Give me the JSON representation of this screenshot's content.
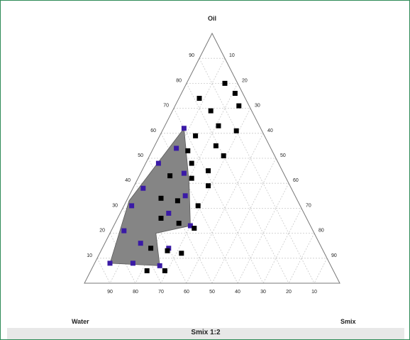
{
  "chart_data": {
    "type": "scatter",
    "subtype": "ternary",
    "caption": "Smix 1:2",
    "vertices": {
      "top": "Oil",
      "left": "Water",
      "right": "Smix"
    },
    "grid": true,
    "grid_style": "dashed",
    "tick_labels": {
      "left_side": [
        "90",
        "80",
        "70",
        "60",
        "50",
        "40",
        "30",
        "20",
        "10"
      ],
      "right_side": [
        "10",
        "20",
        "30",
        "40",
        "50",
        "60",
        "70",
        "80",
        "90"
      ],
      "bottom_side": [
        "90",
        "80",
        "70",
        "60",
        "50",
        "40",
        "30",
        "20",
        "10"
      ]
    },
    "region": {
      "name": "shaded region",
      "color": "#858585",
      "points": [
        {
          "water": 30,
          "oil": 62,
          "smix": 8
        },
        {
          "water": 39,
          "oil": 40,
          "smix": 21
        },
        {
          "water": 47,
          "oil": 23,
          "smix": 30
        },
        {
          "water": 62,
          "oil": 20,
          "smix": 18
        },
        {
          "water": 67,
          "oil": 7,
          "smix": 26
        },
        {
          "water": 86,
          "oil": 8,
          "smix": 6
        },
        {
          "water": 66,
          "oil": 33,
          "smix": 1
        }
      ]
    },
    "series": [
      {
        "color": "#3a1aa6",
        "points": [
          {
            "water": 30,
            "oil": 62,
            "smix": 8
          },
          {
            "water": 37,
            "oil": 54,
            "smix": 9
          },
          {
            "water": 47,
            "oil": 48,
            "smix": 5
          },
          {
            "water": 39,
            "oil": 44,
            "smix": 17
          },
          {
            "water": 58,
            "oil": 38,
            "smix": 4
          },
          {
            "water": 43,
            "oil": 35,
            "smix": 22
          },
          {
            "water": 66,
            "oil": 31,
            "smix": 3
          },
          {
            "water": 53,
            "oil": 28,
            "smix": 19
          },
          {
            "water": 47,
            "oil": 23,
            "smix": 30
          },
          {
            "water": 74,
            "oil": 21,
            "smix": 5
          },
          {
            "water": 70,
            "oil": 16,
            "smix": 14
          },
          {
            "water": 60,
            "oil": 14,
            "smix": 26
          },
          {
            "water": 86,
            "oil": 8,
            "smix": 6
          },
          {
            "water": 77,
            "oil": 8,
            "smix": 15
          },
          {
            "water": 67,
            "oil": 7,
            "smix": 26
          }
        ]
      },
      {
        "color": "#000000",
        "points": [
          {
            "water": 5,
            "oil": 80,
            "smix": 15
          },
          {
            "water": 3,
            "oil": 76,
            "smix": 21
          },
          {
            "water": 18,
            "oil": 74,
            "smix": 8
          },
          {
            "water": 4,
            "oil": 71,
            "smix": 25
          },
          {
            "water": 16,
            "oil": 69,
            "smix": 15
          },
          {
            "water": 16,
            "oil": 63,
            "smix": 21
          },
          {
            "water": 10,
            "oil": 61,
            "smix": 29
          },
          {
            "water": 27,
            "oil": 59,
            "smix": 14
          },
          {
            "water": 21,
            "oil": 55,
            "smix": 24
          },
          {
            "water": 33,
            "oil": 53,
            "smix": 14
          },
          {
            "water": 20,
            "oil": 51,
            "smix": 29
          },
          {
            "water": 34,
            "oil": 48,
            "smix": 18
          },
          {
            "water": 29,
            "oil": 45,
            "smix": 26
          },
          {
            "water": 45,
            "oil": 43,
            "smix": 12
          },
          {
            "water": 37,
            "oil": 42,
            "smix": 21
          },
          {
            "water": 32,
            "oil": 39,
            "smix": 29
          },
          {
            "water": 53,
            "oil": 34,
            "smix": 13
          },
          {
            "water": 47,
            "oil": 33,
            "smix": 20
          },
          {
            "water": 40,
            "oil": 31,
            "smix": 29
          },
          {
            "water": 57,
            "oil": 26,
            "smix": 17
          },
          {
            "water": 51,
            "oil": 24,
            "smix": 25
          },
          {
            "water": 46,
            "oil": 22,
            "smix": 32
          },
          {
            "water": 67,
            "oil": 14,
            "smix": 19
          },
          {
            "water": 61,
            "oil": 13,
            "smix": 26
          },
          {
            "water": 56,
            "oil": 12,
            "smix": 32
          },
          {
            "water": 73,
            "oil": 5,
            "smix": 22
          },
          {
            "water": 66,
            "oil": 5,
            "smix": 29
          }
        ]
      }
    ]
  }
}
